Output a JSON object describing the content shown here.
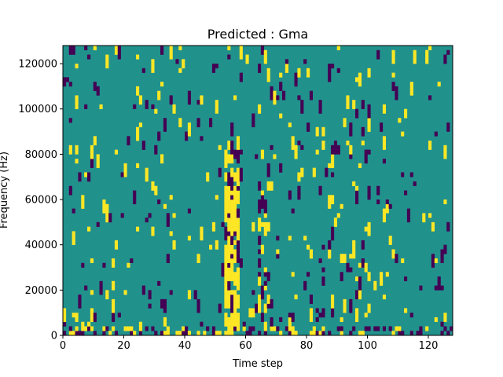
{
  "chart_data": {
    "type": "heatmap",
    "title": "Predicted : Gma",
    "xlabel": "Time step",
    "ylabel": "Frequency (Hz)",
    "xlim": [
      0,
      128
    ],
    "ylim": [
      0,
      128000
    ],
    "x_ticks": [
      0,
      20,
      40,
      60,
      80,
      100,
      120
    ],
    "y_ticks": [
      0,
      20000,
      40000,
      60000,
      80000,
      100000,
      120000
    ],
    "x_tick_labels": [
      "0",
      "20",
      "40",
      "60",
      "80",
      "100",
      "120"
    ],
    "y_tick_labels": [
      "0",
      "20000",
      "40000",
      "60000",
      "80000",
      "100000",
      "120000"
    ],
    "grid": false,
    "legend": "none",
    "colormap": "viridis",
    "colors": {
      "background_level": "#21918c",
      "low_level": "#440154",
      "high_level": "#fde725",
      "axes": "#000000",
      "figure": "#ffffff"
    },
    "rows": 64,
    "cols": 128,
    "seed": 7
  }
}
